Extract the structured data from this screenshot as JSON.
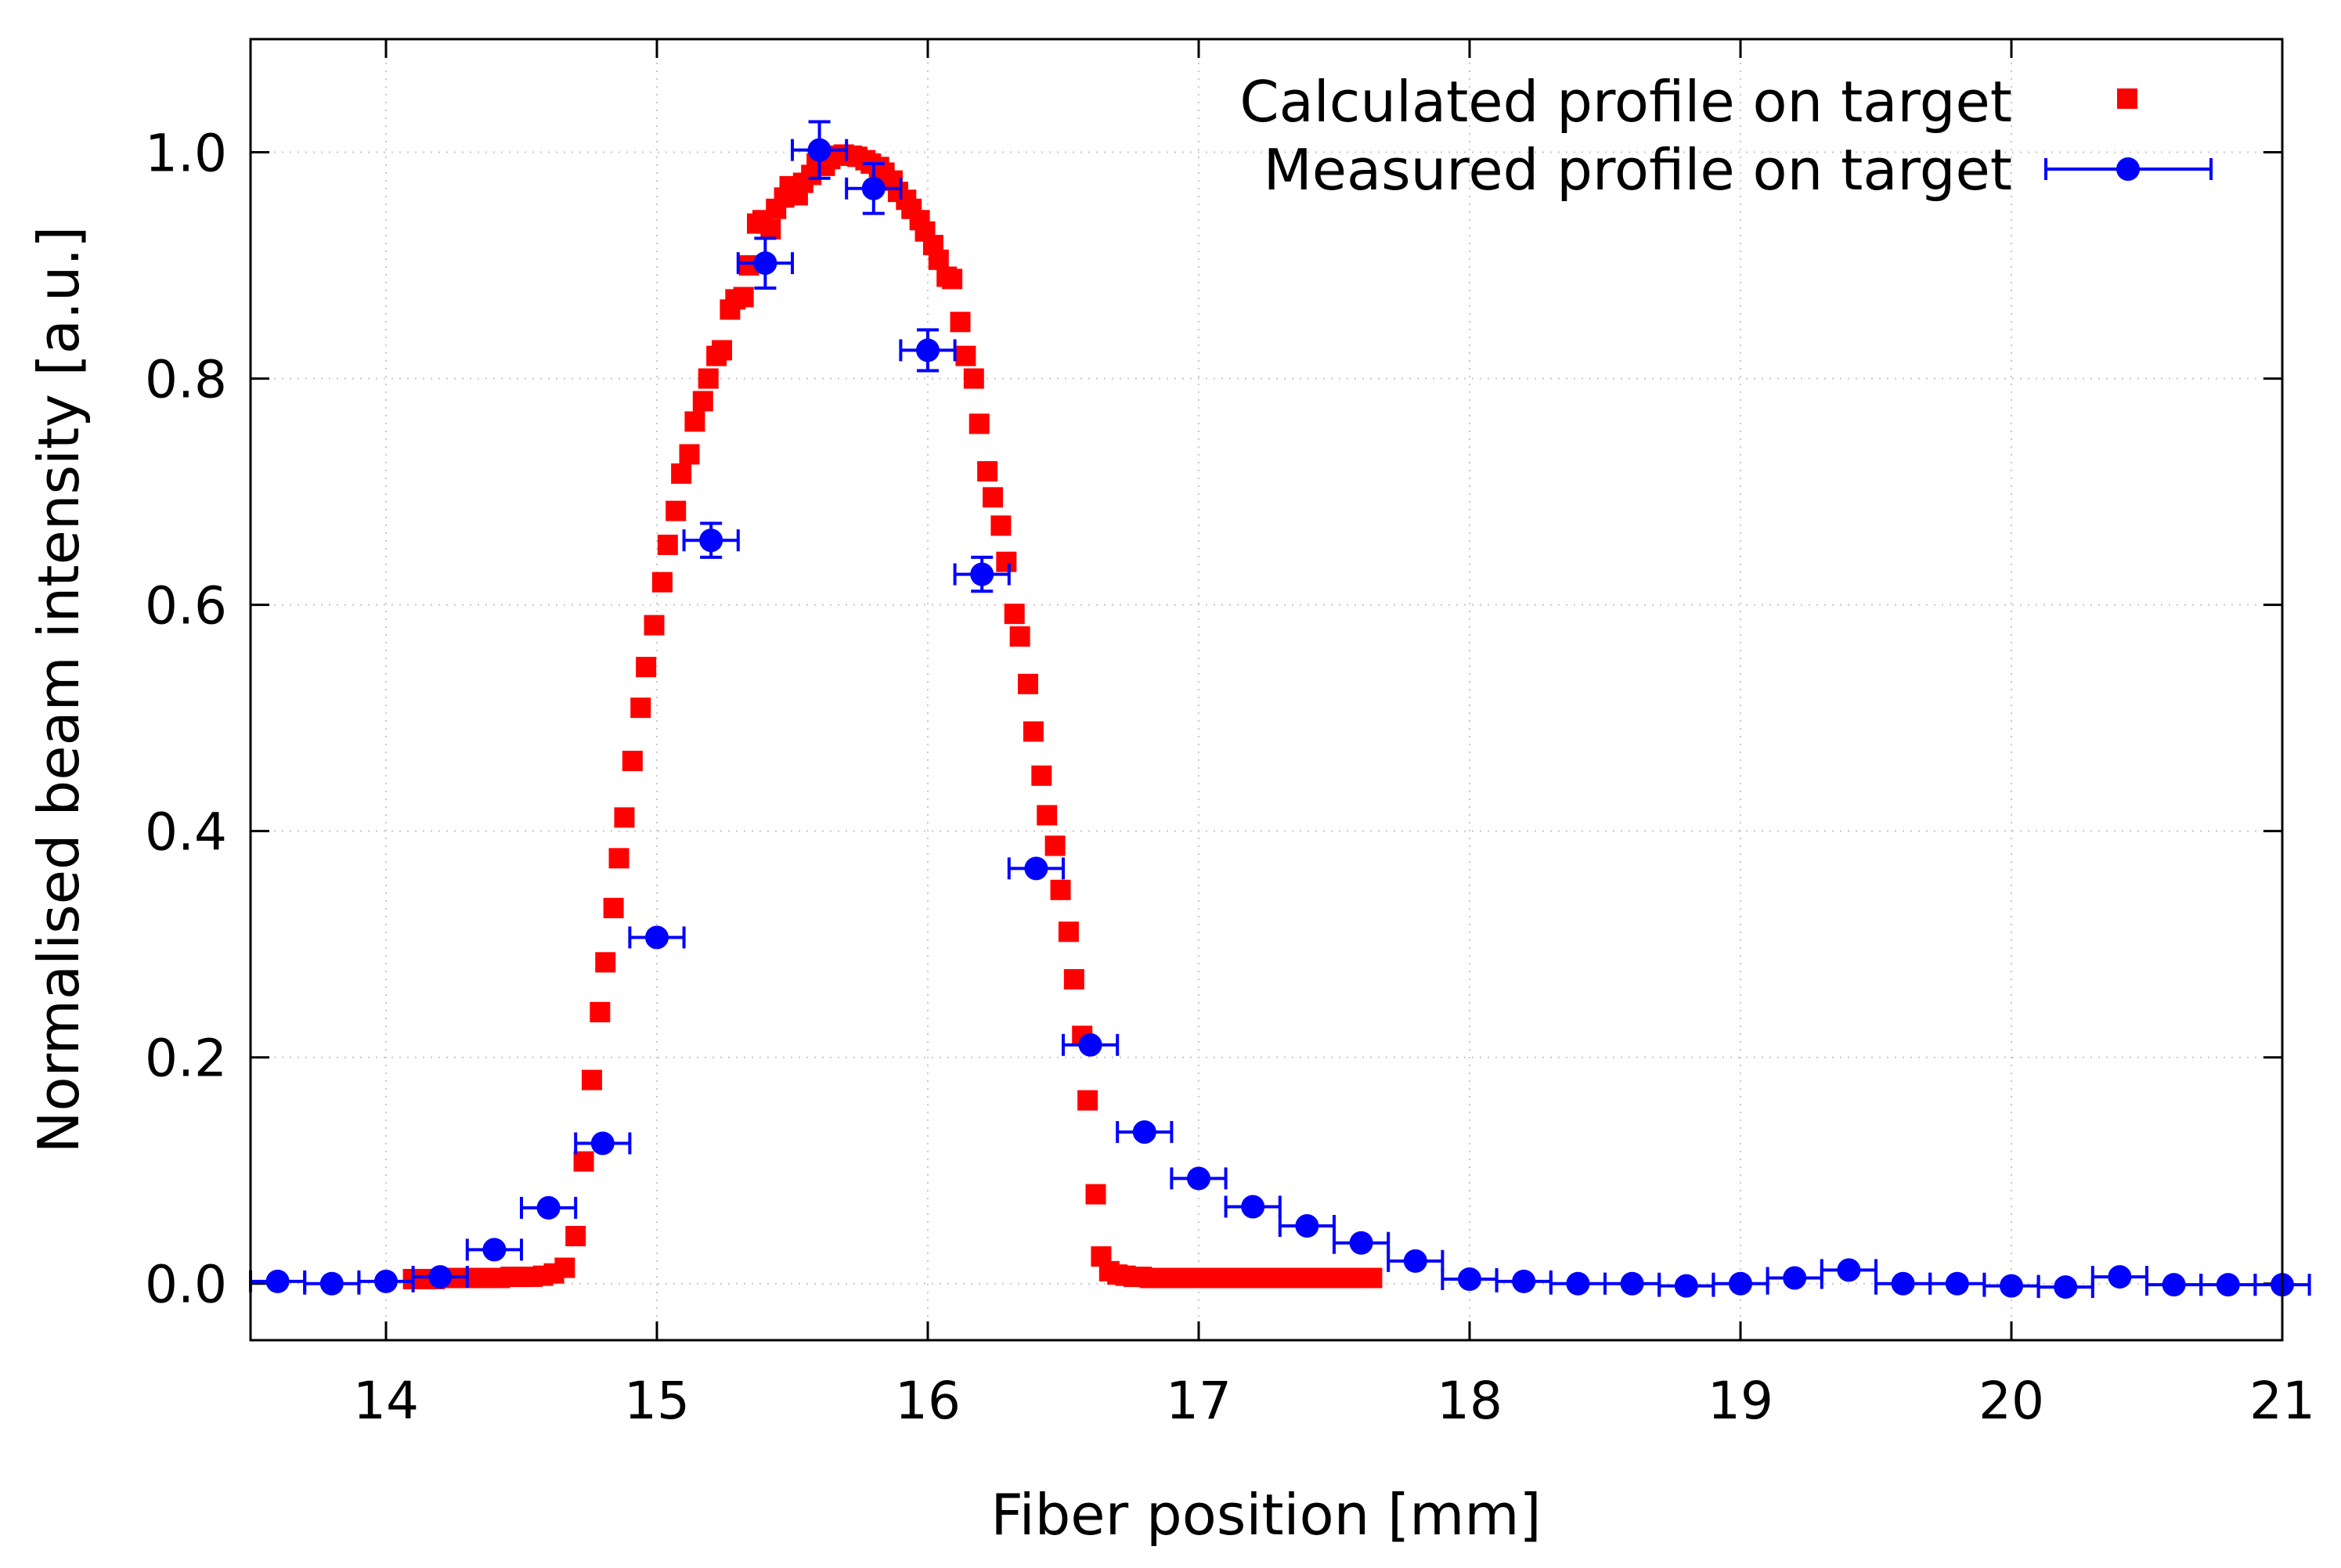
{
  "chart_data": {
    "type": "scatter",
    "title": "",
    "xlabel": "Fiber position [mm]",
    "ylabel": "Normalised beam intensity [a.u.]",
    "xlim": [
      13.5,
      21
    ],
    "ylim": [
      -0.05,
      1.1
    ],
    "grid": true,
    "legend_position": "top-right",
    "x_ticks": [
      14,
      15,
      16,
      17,
      18,
      19,
      20,
      21
    ],
    "x_tick_labels": [
      "14",
      "15",
      "16",
      "17",
      "18",
      "19",
      "20",
      "21"
    ],
    "y_ticks": [
      0.0,
      0.2,
      0.4,
      0.6,
      0.8,
      1.0
    ],
    "y_tick_labels": [
      "0.0",
      "0.2",
      "0.4",
      "0.6",
      "0.8",
      "1.0"
    ],
    "colors": {
      "calculated": "#ff0000",
      "measured": "#0000ff"
    },
    "series": [
      {
        "name": "Calculated profile on target",
        "marker": "square",
        "color": "#ff0000",
        "x": [
          14.1,
          14.14,
          14.18,
          14.22,
          14.26,
          14.3,
          14.34,
          14.38,
          14.42,
          14.46,
          14.5,
          14.54,
          14.58,
          14.62,
          14.66,
          14.7,
          14.73,
          14.76,
          14.79,
          14.81,
          14.84,
          14.86,
          14.88,
          14.91,
          14.94,
          14.96,
          14.99,
          15.02,
          15.04,
          15.07,
          15.09,
          15.12,
          15.14,
          15.17,
          15.19,
          15.22,
          15.24,
          15.27,
          15.29,
          15.32,
          15.34,
          15.37,
          15.39,
          15.42,
          15.44,
          15.47,
          15.49,
          15.52,
          15.54,
          15.57,
          15.59,
          15.62,
          15.64,
          15.67,
          15.69,
          15.72,
          15.74,
          15.77,
          15.79,
          15.82,
          15.84,
          15.87,
          15.89,
          15.92,
          15.94,
          15.97,
          15.99,
          16.02,
          16.04,
          16.07,
          16.09,
          16.12,
          16.14,
          16.17,
          16.19,
          16.22,
          16.24,
          16.27,
          16.29,
          16.32,
          16.34,
          16.37,
          16.39,
          16.42,
          16.44,
          16.47,
          16.49,
          16.52,
          16.54,
          16.57,
          16.59,
          16.62,
          16.64,
          16.67,
          16.7,
          16.73,
          16.76,
          16.79,
          16.82,
          16.85,
          16.88,
          16.91,
          16.94,
          16.97,
          17.0,
          17.03,
          17.06,
          17.09,
          17.12,
          17.15,
          17.18,
          17.21,
          17.24,
          17.27,
          17.3,
          17.33,
          17.36,
          17.39,
          17.42,
          17.45,
          17.48,
          17.51,
          17.54,
          17.57,
          17.6,
          17.64
        ],
        "y": [
          0.004,
          0.004,
          0.004,
          0.005,
          0.005,
          0.005,
          0.005,
          0.005,
          0.005,
          0.006,
          0.006,
          0.006,
          0.007,
          0.009,
          0.014,
          0.042,
          0.108,
          0.18,
          0.24,
          0.284,
          0.332,
          0.376,
          0.412,
          0.462,
          0.509,
          0.545,
          0.582,
          0.62,
          0.653,
          0.683,
          0.716,
          0.733,
          0.762,
          0.78,
          0.8,
          0.82,
          0.825,
          0.861,
          0.87,
          0.872,
          0.9,
          0.937,
          0.94,
          0.932,
          0.95,
          0.96,
          0.97,
          0.962,
          0.973,
          0.98,
          0.99,
          0.988,
          0.994,
          0.997,
          0.998,
          0.997,
          0.996,
          0.993,
          0.99,
          0.987,
          0.982,
          0.975,
          0.965,
          0.958,
          0.95,
          0.94,
          0.93,
          0.918,
          0.905,
          0.89,
          0.888,
          0.85,
          0.82,
          0.8,
          0.76,
          0.718,
          0.695,
          0.67,
          0.638,
          0.592,
          0.572,
          0.53,
          0.488,
          0.449,
          0.414,
          0.387,
          0.348,
          0.311,
          0.269,
          0.219,
          0.162,
          0.079,
          0.024,
          0.011,
          0.008,
          0.007,
          0.006,
          0.006,
          0.005,
          0.005,
          0.005,
          0.005,
          0.005,
          0.005,
          0.005,
          0.005,
          0.005,
          0.005,
          0.005,
          0.005,
          0.005,
          0.005,
          0.005,
          0.005,
          0.005,
          0.005,
          0.005,
          0.005,
          0.005,
          0.005,
          0.005,
          0.005,
          0.005,
          0.005,
          0.005,
          0.005
        ]
      },
      {
        "name": "Measured profile on target",
        "marker": "circle",
        "color": "#0000ff",
        "x": [
          13.6,
          13.8,
          14.0,
          14.2,
          14.4,
          14.6,
          14.8,
          15.0,
          15.2,
          15.4,
          15.6,
          15.8,
          16.0,
          16.2,
          16.4,
          16.6,
          16.8,
          17.0,
          17.2,
          17.4,
          17.6,
          17.8,
          18.0,
          18.2,
          18.4,
          18.6,
          18.8,
          19.0,
          19.2,
          19.4,
          19.6,
          19.8,
          20.0,
          20.2,
          20.4,
          20.6,
          20.8,
          21.0
        ],
        "y": [
          0.002,
          0.0,
          0.002,
          0.006,
          0.03,
          0.067,
          0.124,
          0.306,
          0.657,
          0.902,
          1.002,
          0.968,
          0.825,
          0.627,
          0.367,
          0.211,
          0.134,
          0.093,
          0.068,
          0.051,
          0.036,
          0.02,
          0.004,
          0.002,
          0.0,
          0.0,
          -0.002,
          0.0,
          0.005,
          0.012,
          0.0,
          0.0,
          -0.002,
          -0.003,
          0.006,
          -0.001,
          -0.001,
          -0.001
        ],
        "xerr": 0.1,
        "yerr": [
          0.0,
          0.0,
          0.0,
          0.0,
          0.0,
          0.0,
          0.0,
          0.0,
          0.015,
          0.022,
          0.025,
          0.022,
          0.018,
          0.015,
          0.0,
          0.0,
          0.0,
          0.0,
          0.0,
          0.0,
          0.0,
          0.0,
          0.0,
          0.0,
          0.0,
          0.0,
          0.0,
          0.0,
          0.0,
          0.0,
          0.0,
          0.0,
          0.0,
          0.0,
          0.0,
          0.0,
          0.0,
          0.0
        ]
      }
    ]
  }
}
